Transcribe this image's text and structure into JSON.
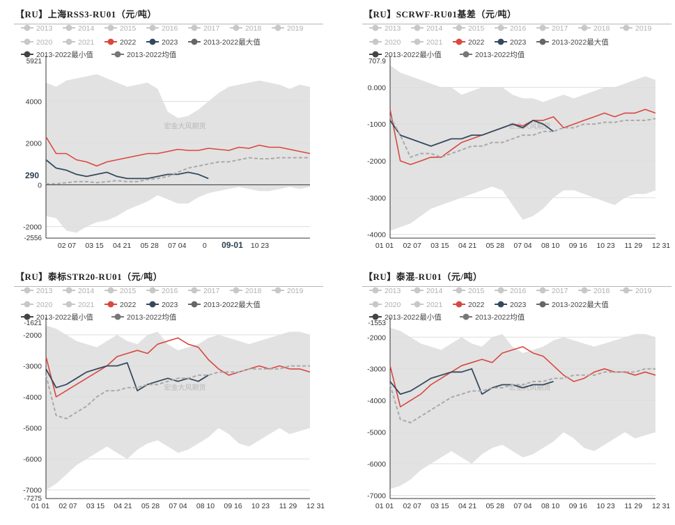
{
  "chart_data": [
    {
      "type": "line",
      "title": "【RU】上海RSS3-RU01（元/吨）",
      "legend": [
        "2013",
        "2014",
        "2015",
        "2016",
        "2017",
        "2018",
        "2019",
        "2020",
        "2021",
        "2022",
        "2023",
        "2013-2022最大值",
        "2013-2022最小值",
        "2013-2022均值"
      ],
      "legend_placement": "top",
      "x_ticks": [
        "02 07",
        "03 15",
        "04 21",
        "05 28",
        "07 04",
        "0",
        "09-01",
        "10 23"
      ],
      "y_ticks": [
        "4000",
        "2000",
        "0",
        "-2000"
      ],
      "ylim": [
        -2556,
        5921
      ],
      "ylim_labels": [
        "5921",
        "-2556"
      ],
      "highlight_label": "290",
      "watermark": "宏金大风期货",
      "series": [
        {
          "name": "2022",
          "values": [
            2300,
            1500,
            1500,
            1200,
            1100,
            900,
            1100,
            1200,
            1300,
            1400,
            1500,
            1500,
            1600,
            1700,
            1650,
            1650,
            1750,
            1700,
            1650,
            1800,
            1750,
            1900,
            1800,
            1800,
            1700,
            1600,
            1500
          ]
        },
        {
          "name": "2023",
          "values": [
            1200,
            800,
            700,
            500,
            400,
            500,
            600,
            400,
            300,
            300,
            300,
            400,
            500,
            500,
            600,
            500,
            300
          ]
        },
        {
          "name": "2013-2022均值",
          "values": [
            50,
            50,
            100,
            150,
            150,
            100,
            150,
            200,
            150,
            150,
            250,
            300,
            400,
            600,
            800,
            900,
            1000,
            1100,
            1100,
            1200,
            1300,
            1250,
            1250,
            1300,
            1300,
            1300,
            1300
          ]
        }
      ],
      "band_max": [
        4900,
        4700,
        5000,
        5100,
        5200,
        5300,
        5100,
        4900,
        4700,
        4800,
        4900,
        4600,
        3500,
        3200,
        3300,
        3600,
        4000,
        4400,
        4700,
        4800,
        4900,
        5000,
        4900,
        4800,
        4600,
        4800,
        4700
      ],
      "band_min": [
        -1500,
        -1600,
        -2200,
        -2300,
        -2000,
        -1800,
        -1700,
        -1500,
        -1200,
        -1000,
        -800,
        -500,
        -700,
        -900,
        -900,
        -600,
        -400,
        -300,
        -200,
        -100,
        -200,
        -300,
        -300,
        -200,
        -100,
        -200,
        -100
      ]
    },
    {
      "type": "line",
      "title": "【RU】SCRWF-RU01基差（元/吨）",
      "legend": [
        "2013",
        "2014",
        "2015",
        "2016",
        "2017",
        "2018",
        "2019",
        "2020",
        "2021",
        "2022",
        "2023",
        "2013-2022最大值",
        "2013-2022最小值",
        "2013-2022均值"
      ],
      "legend_placement": "top",
      "x_ticks": [
        "01 01",
        "02 07",
        "03 15",
        "04 21",
        "05 28",
        "07 04",
        "08 10",
        "09 16",
        "10 23",
        "11 29",
        "12 31"
      ],
      "y_ticks": [
        "0.000",
        "-1000",
        "-2000",
        "-3000",
        "-4000"
      ],
      "ylim": [
        -4100,
        707.9
      ],
      "ylim_labels": [
        "707.9"
      ],
      "watermark": "宏金大风期货",
      "series": [
        {
          "name": "2022",
          "values": [
            -600,
            -2000,
            -2100,
            -2000,
            -1900,
            -1900,
            -1700,
            -1500,
            -1400,
            -1300,
            -1200,
            -1100,
            -1000,
            -1050,
            -900,
            -900,
            -800,
            -1100,
            -1000,
            -900,
            -800,
            -700,
            -800,
            -700,
            -700,
            -600,
            -700
          ]
        },
        {
          "name": "2023",
          "values": [
            -900,
            -1300,
            -1400,
            -1500,
            -1600,
            -1500,
            -1400,
            -1400,
            -1300,
            -1300,
            -1200,
            -1100,
            -1000,
            -1100,
            -900,
            -1000,
            -1200
          ]
        },
        {
          "name": "2013-2022均值",
          "values": [
            -800,
            -1300,
            -1900,
            -1800,
            -1800,
            -1900,
            -1800,
            -1700,
            -1600,
            -1600,
            -1500,
            -1500,
            -1400,
            -1300,
            -1300,
            -1200,
            -1200,
            -1100,
            -1100,
            -1000,
            -1000,
            -950,
            -950,
            -900,
            -900,
            -900,
            -850
          ]
        }
      ],
      "band_max": [
        600,
        400,
        300,
        200,
        100,
        0,
        0,
        -200,
        -100,
        0,
        0,
        0,
        -200,
        -300,
        -300,
        -400,
        -300,
        -200,
        -300,
        -200,
        -100,
        0,
        0,
        100,
        200,
        300,
        200
      ],
      "band_min": [
        -3900,
        -3800,
        -3700,
        -3500,
        -3300,
        -3200,
        -3100,
        -3000,
        -2900,
        -2800,
        -2700,
        -2800,
        -3200,
        -3600,
        -3500,
        -3300,
        -3000,
        -2800,
        -2800,
        -2900,
        -3000,
        -3100,
        -3200,
        -3000,
        -2900,
        -2900,
        -2800
      ]
    },
    {
      "type": "line",
      "title": "【RU】泰标STR20-RU01（元/吨）",
      "legend": [
        "2013",
        "2014",
        "2015",
        "2016",
        "2017",
        "2018",
        "2019",
        "2020",
        "2021",
        "2022",
        "2023",
        "2013-2022最大值",
        "2013-2022最小值",
        "2013-2022均值"
      ],
      "legend_placement": "top",
      "x_ticks": [
        "01 01",
        "02 07",
        "03 15",
        "04 21",
        "05 28",
        "07 04",
        "08 10",
        "09 16",
        "10 23",
        "11 29",
        "12 31"
      ],
      "y_ticks": [
        "-2000",
        "-3000",
        "-4000",
        "-5000",
        "-6000",
        "-7000"
      ],
      "ylim": [
        -7275,
        -1621
      ],
      "ylim_labels": [
        "-1621",
        "-7275"
      ],
      "watermark": "宏金大风期货",
      "series": [
        {
          "name": "2022",
          "values": [
            -2700,
            -4000,
            -3800,
            -3600,
            -3400,
            -3200,
            -3000,
            -2700,
            -2600,
            -2500,
            -2600,
            -2300,
            -2200,
            -2100,
            -2300,
            -2400,
            -2800,
            -3100,
            -3300,
            -3200,
            -3100,
            -3000,
            -3100,
            -3000,
            -3100,
            -3100,
            -3200
          ]
        },
        {
          "name": "2023",
          "values": [
            -3100,
            -3700,
            -3600,
            -3400,
            -3200,
            -3100,
            -3000,
            -3000,
            -2900,
            -3800,
            -3600,
            -3500,
            -3400,
            -3500,
            -3400,
            -3500,
            -3300
          ]
        },
        {
          "name": "2013-2022均值",
          "values": [
            -3300,
            -4600,
            -4700,
            -4500,
            -4300,
            -4000,
            -3800,
            -3800,
            -3700,
            -3700,
            -3600,
            -3600,
            -3500,
            -3400,
            -3400,
            -3300,
            -3300,
            -3200,
            -3200,
            -3200,
            -3100,
            -3100,
            -3100,
            -3100,
            -3000,
            -3000,
            -3000
          ]
        }
      ],
      "band_max": [
        -1700,
        -1800,
        -2000,
        -2200,
        -2300,
        -2400,
        -2200,
        -2000,
        -2200,
        -2300,
        -2000,
        -1900,
        -2300,
        -2500,
        -2400,
        -2300,
        -2100,
        -2000,
        -2100,
        -2200,
        -2300,
        -2200,
        -2100,
        -2000,
        -1900,
        -1900,
        -2000
      ],
      "band_min": [
        -7000,
        -6800,
        -6500,
        -6200,
        -6000,
        -5800,
        -5600,
        -5800,
        -6000,
        -5700,
        -5500,
        -5400,
        -5600,
        -5800,
        -5700,
        -5500,
        -5300,
        -5000,
        -5200,
        -5500,
        -5600,
        -5400,
        -5200,
        -5000,
        -5200,
        -5100,
        -5000
      ]
    },
    {
      "type": "line",
      "title": "【RU】泰混-RU01（元/吨）",
      "legend": [
        "2013",
        "2014",
        "2015",
        "2016",
        "2017",
        "2018",
        "2019",
        "2020",
        "2021",
        "2022",
        "2023",
        "2013-2022最大值",
        "2013-2022最小值",
        "2013-2022均值"
      ],
      "legend_placement": "top",
      "x_ticks": [
        "01 01",
        "02 07",
        "03 15",
        "04 21",
        "05 28",
        "07 04",
        "08 10",
        "09 16",
        "10 23",
        "11 29",
        "12 31"
      ],
      "y_ticks": [
        "-2000",
        "-3000",
        "-4000",
        "-5000",
        "-6000",
        "-7000"
      ],
      "ylim": [
        -7100,
        -1553
      ],
      "ylim_labels": [
        "-1553"
      ],
      "watermark": "宏金大风期货",
      "series": [
        {
          "name": "2022",
          "values": [
            -2900,
            -4200,
            -4000,
            -3800,
            -3500,
            -3300,
            -3100,
            -2900,
            -2800,
            -2700,
            -2800,
            -2500,
            -2400,
            -2300,
            -2500,
            -2600,
            -2900,
            -3200,
            -3400,
            -3300,
            -3100,
            -3000,
            -3100,
            -3100,
            -3200,
            -3100,
            -3200
          ]
        },
        {
          "name": "2023",
          "values": [
            -3400,
            -3800,
            -3700,
            -3500,
            -3300,
            -3200,
            -3100,
            -3100,
            -3000,
            -3800,
            -3600,
            -3500,
            -3500,
            -3600,
            -3500,
            -3500,
            -3400
          ]
        },
        {
          "name": "2013-2022均值",
          "values": [
            -3500,
            -4600,
            -4700,
            -4500,
            -4300,
            -4100,
            -3900,
            -3800,
            -3700,
            -3700,
            -3600,
            -3600,
            -3500,
            -3500,
            -3400,
            -3400,
            -3300,
            -3300,
            -3200,
            -3200,
            -3200,
            -3100,
            -3100,
            -3100,
            -3100,
            -3000,
            -3000
          ]
        }
      ],
      "band_max": [
        -1700,
        -1800,
        -2000,
        -2200,
        -2300,
        -2400,
        -2200,
        -2000,
        -2200,
        -2300,
        -2000,
        -1900,
        -2300,
        -2500,
        -2400,
        -2300,
        -2100,
        -2000,
        -2100,
        -2200,
        -2300,
        -2200,
        -2100,
        -2000,
        -1900,
        -1900,
        -2000
      ],
      "band_min": [
        -6800,
        -6700,
        -6500,
        -6200,
        -6000,
        -5800,
        -5600,
        -5800,
        -6000,
        -5700,
        -5500,
        -5400,
        -5600,
        -5800,
        -5700,
        -5500,
        -5300,
        -5000,
        -5200,
        -5500,
        -5600,
        -5400,
        -5200,
        -5000,
        -5200,
        -5100,
        -5000
      ]
    }
  ],
  "colors": {
    "band": "#e2e2e2",
    "inactive": "#c8c8c8",
    "y2022": "#d9473f",
    "y2023": "#34495e",
    "avg": "#a9a9a9",
    "legend_max": "#666666",
    "legend_min": "#444444",
    "legend_avg": "#777777",
    "axis": "#333333",
    "grid": "#dddddd",
    "text": "#333333"
  }
}
